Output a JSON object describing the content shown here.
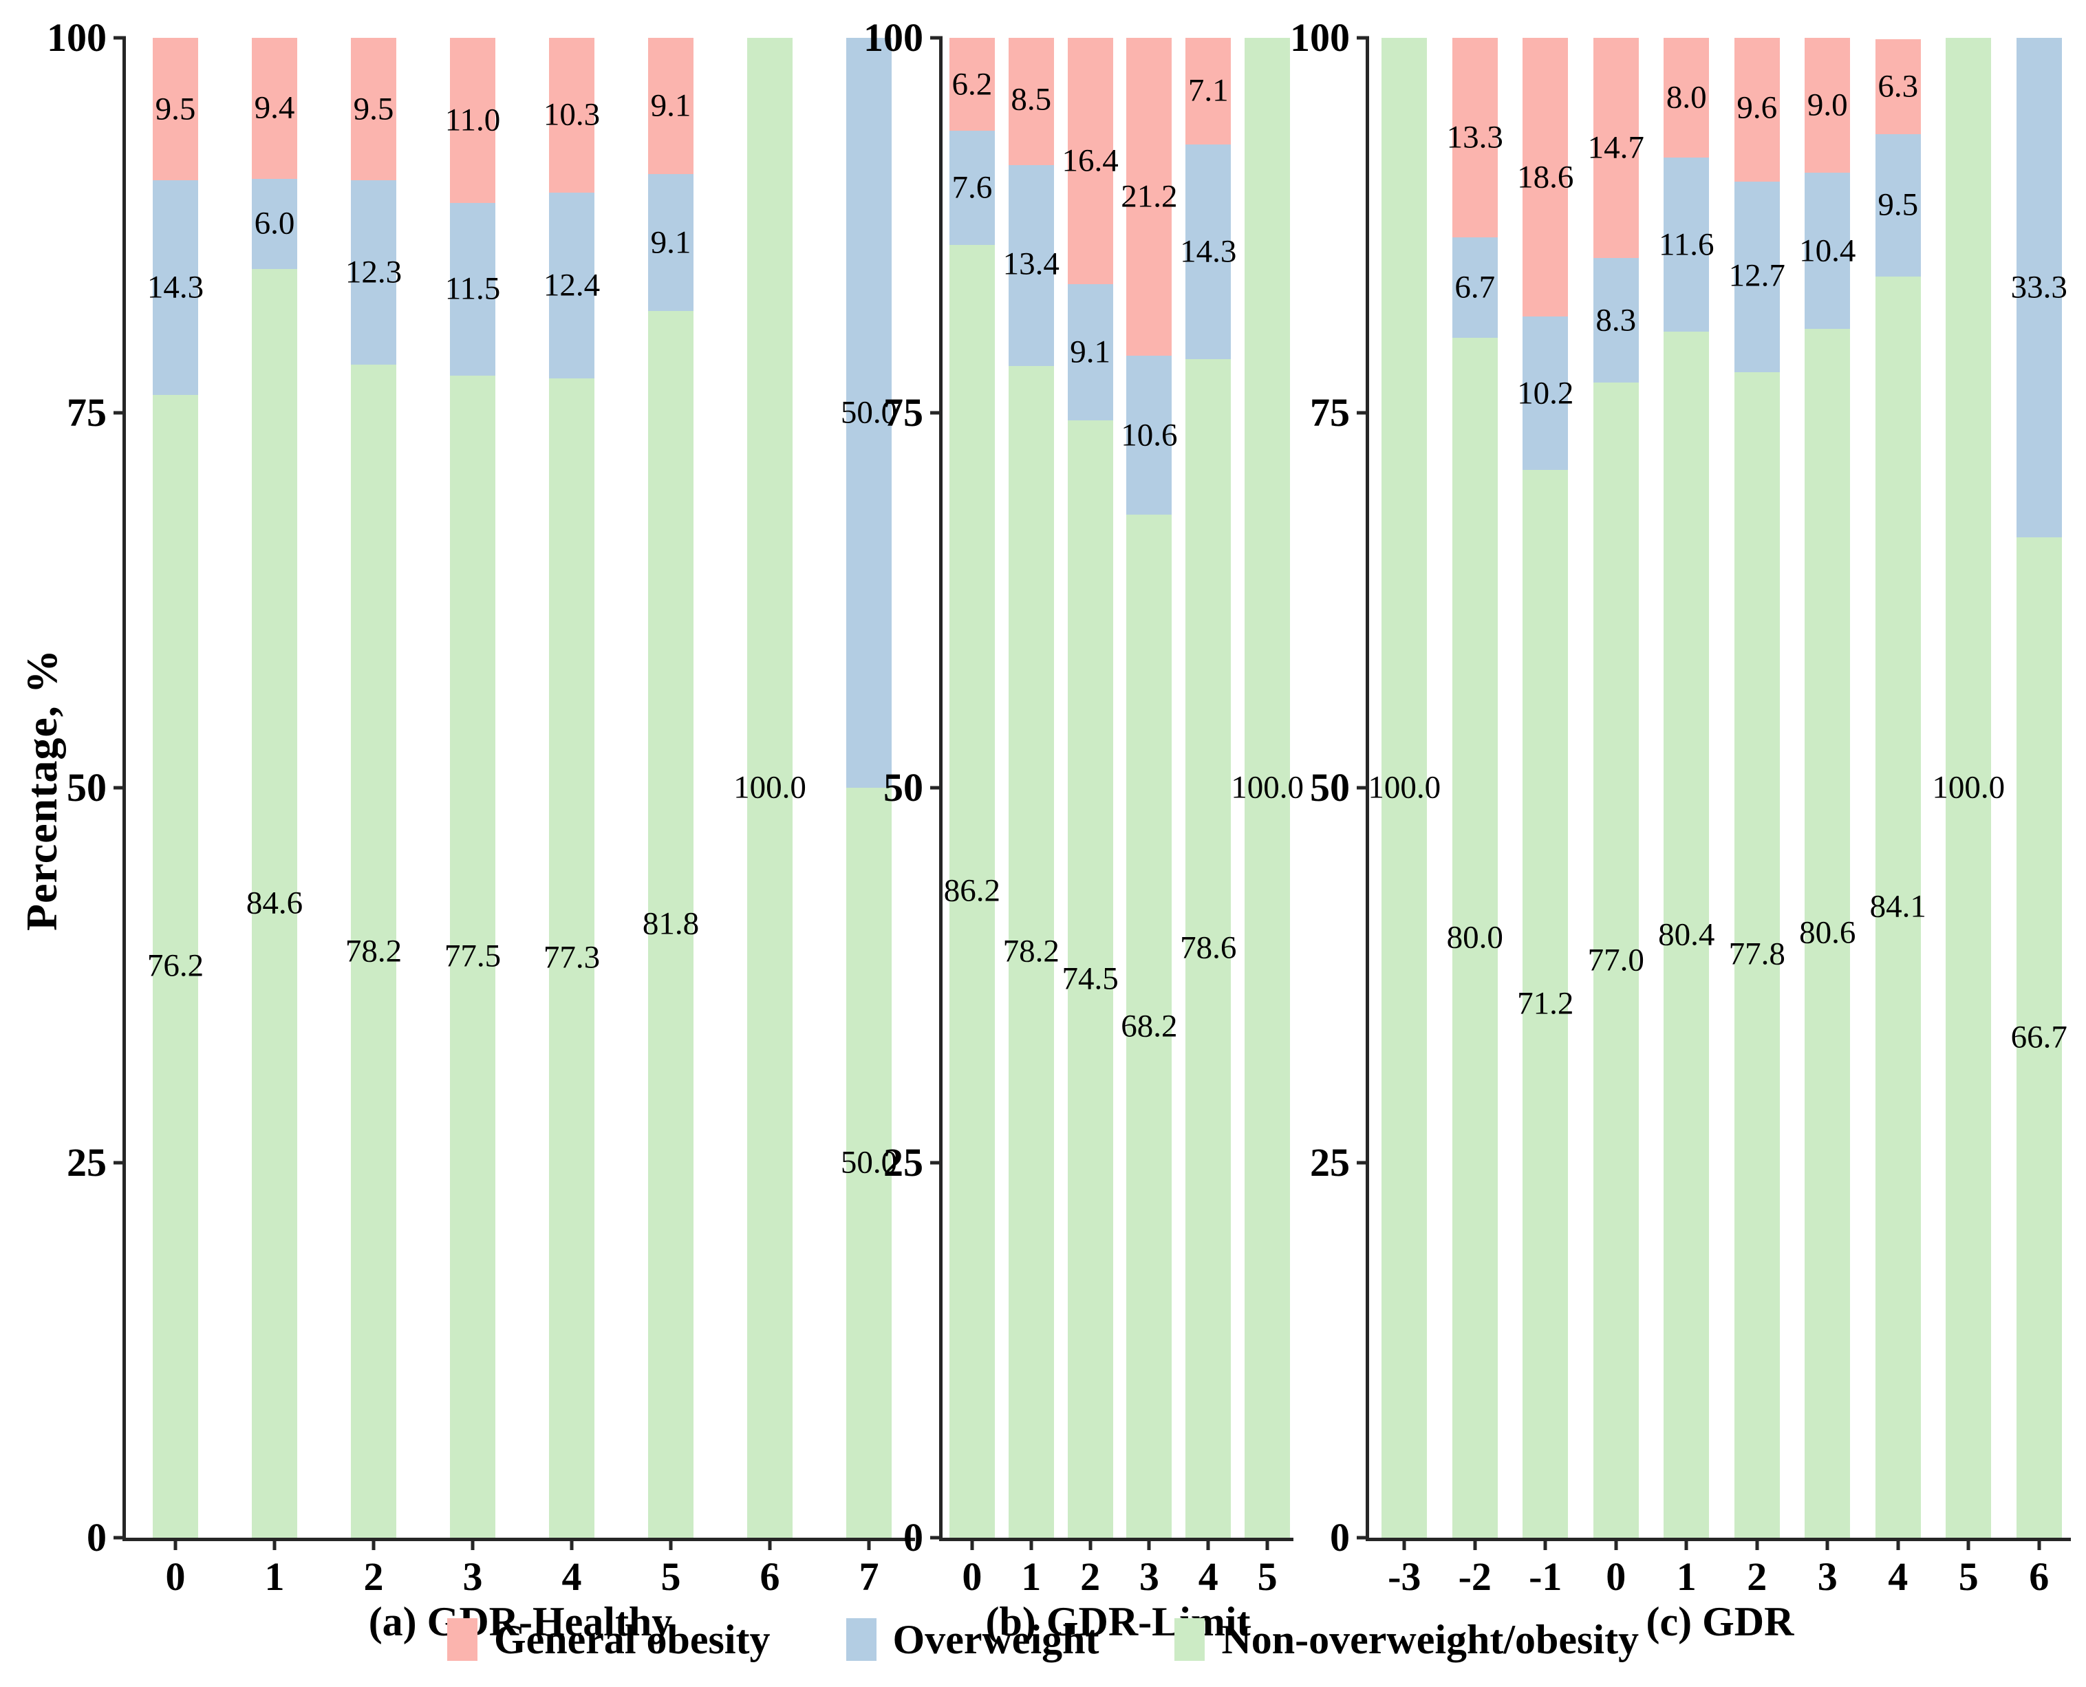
{
  "y_axis": {
    "title": "Percentage, %",
    "ticks": [
      0,
      25,
      50,
      75,
      100
    ],
    "range": [
      0,
      100
    ]
  },
  "legend": {
    "position": "bottom",
    "items": [
      {
        "label": "General obesity",
        "color": "#FBB4AE"
      },
      {
        "label": "Overweight",
        "color": "#B3CDE3"
      },
      {
        "label": "Non-overweight/obesity",
        "color": "#CCEBC5"
      }
    ]
  },
  "chart_data": [
    {
      "type": "bar",
      "stacked": true,
      "title": "(a) GDR-Healthy",
      "categories": [
        "0",
        "1",
        "2",
        "3",
        "4",
        "5",
        "6",
        "7"
      ],
      "series": [
        {
          "name": "Non-overweight/obesity",
          "color": "#CCEBC5",
          "values": [
            76.2,
            84.6,
            78.2,
            77.5,
            77.3,
            81.8,
            100.0,
            50.0
          ]
        },
        {
          "name": "Overweight",
          "color": "#B3CDE3",
          "values": [
            14.3,
            6.0,
            12.3,
            11.5,
            12.4,
            9.1,
            0,
            50.0
          ]
        },
        {
          "name": "General obesity",
          "color": "#FBB4AE",
          "values": [
            9.5,
            9.4,
            9.5,
            11.0,
            10.3,
            9.1,
            0,
            0
          ]
        }
      ],
      "ylim": [
        0,
        100
      ]
    },
    {
      "type": "bar",
      "stacked": true,
      "title": "(b) GDR-Limit",
      "categories": [
        "0",
        "1",
        "2",
        "3",
        "4",
        "5"
      ],
      "series": [
        {
          "name": "Non-overweight/obesity",
          "color": "#CCEBC5",
          "values": [
            86.2,
            78.2,
            74.5,
            68.2,
            78.6,
            100.0
          ]
        },
        {
          "name": "Overweight",
          "color": "#B3CDE3",
          "values": [
            7.6,
            13.4,
            9.1,
            10.6,
            14.3,
            0
          ]
        },
        {
          "name": "General obesity",
          "color": "#FBB4AE",
          "values": [
            6.2,
            8.5,
            16.4,
            21.2,
            7.1,
            0
          ]
        }
      ],
      "ylim": [
        0,
        100
      ]
    },
    {
      "type": "bar",
      "stacked": true,
      "title": "(c) GDR",
      "categories": [
        "-3",
        "-2",
        "-1",
        "0",
        "1",
        "2",
        "3",
        "4",
        "5",
        "6"
      ],
      "series": [
        {
          "name": "Non-overweight/obesity",
          "color": "#CCEBC5",
          "values": [
            100.0,
            80.0,
            71.2,
            77.0,
            80.4,
            77.8,
            80.6,
            84.1,
            100.0,
            66.7
          ]
        },
        {
          "name": "Overweight",
          "color": "#B3CDE3",
          "values": [
            0,
            6.7,
            10.2,
            8.3,
            11.6,
            12.7,
            10.4,
            9.5,
            0,
            33.3
          ]
        },
        {
          "name": "General obesity",
          "color": "#FBB4AE",
          "values": [
            0,
            13.3,
            18.6,
            14.7,
            8.0,
            9.6,
            9.0,
            6.3,
            0,
            0
          ]
        }
      ],
      "ylim": [
        0,
        100
      ]
    }
  ]
}
